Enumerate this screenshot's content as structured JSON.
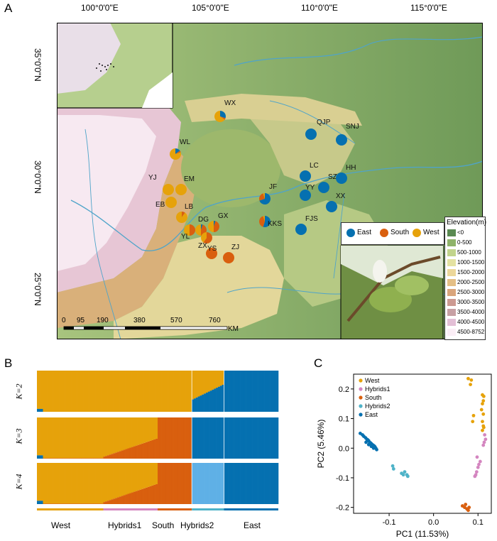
{
  "panels": {
    "a": "A",
    "b": "B",
    "c": "C"
  },
  "map": {
    "lon_labels": [
      "100°0'0\"E",
      "105°0'0\"E",
      "110°0'0\"E",
      "115°0'0\"E"
    ],
    "lat_labels": [
      "35°0'0\"N",
      "30°0'0\"N",
      "25°0'0\"N"
    ],
    "scale_labels": [
      "0",
      "95",
      "190",
      "380",
      "570",
      "760",
      "KM"
    ],
    "pop_legend": {
      "east": "East",
      "south": "South",
      "west": "West"
    },
    "elev_title": "Elevation(m)",
    "elev_classes": [
      {
        "label": "<0",
        "color": "#5a8a52"
      },
      {
        "label": "0-500",
        "color": "#8fb36a"
      },
      {
        "label": "500-1000",
        "color": "#c2d48c"
      },
      {
        "label": "1000-1500",
        "color": "#e4e2a2"
      },
      {
        "label": "1500-2000",
        "color": "#ecd79a"
      },
      {
        "label": "2000-2500",
        "color": "#e4bf86"
      },
      {
        "label": "2500-3000",
        "color": "#d9a57c"
      },
      {
        "label": "3000-3500",
        "color": "#cc9a92"
      },
      {
        "label": "3500-4000",
        "color": "#c7a0a4"
      },
      {
        "label": "4000-4500",
        "color": "#e3bfd6"
      },
      {
        "label": "4500-8752",
        "color": "#fbeef6"
      }
    ],
    "sites": [
      {
        "name": "WX",
        "east": 0.3,
        "south": 0.05,
        "west": 0.65
      },
      {
        "name": "QJP",
        "east": 1.0,
        "south": 0,
        "west": 0
      },
      {
        "name": "SNJ",
        "east": 1.0,
        "south": 0,
        "west": 0
      },
      {
        "name": "WL",
        "east": 0.15,
        "south": 0.05,
        "west": 0.8
      },
      {
        "name": "YJ",
        "east": 0,
        "south": 0,
        "west": 1.0
      },
      {
        "name": "EM",
        "east": 0,
        "south": 0,
        "west": 1.0
      },
      {
        "name": "EB",
        "east": 0,
        "south": 0,
        "west": 1.0
      },
      {
        "name": "LB",
        "east": 0,
        "south": 0.1,
        "west": 0.9
      },
      {
        "name": "YL",
        "east": 0,
        "south": 0.5,
        "west": 0.5
      },
      {
        "name": "DG",
        "east": 0.05,
        "south": 0.45,
        "west": 0.5
      },
      {
        "name": "GX",
        "east": 0.05,
        "south": 0.45,
        "west": 0.5
      },
      {
        "name": "ZX",
        "east": 0,
        "south": 0.6,
        "west": 0.4
      },
      {
        "name": "YS",
        "east": 0,
        "south": 1.0,
        "west": 0
      },
      {
        "name": "ZJ",
        "east": 0,
        "south": 1.0,
        "west": 0
      },
      {
        "name": "JF",
        "east": 0.7,
        "south": 0.25,
        "west": 0.05
      },
      {
        "name": "KKS",
        "east": 0.55,
        "south": 0.4,
        "west": 0.05
      },
      {
        "name": "LC",
        "east": 1.0,
        "south": 0,
        "west": 0
      },
      {
        "name": "YY",
        "east": 1.0,
        "south": 0,
        "west": 0
      },
      {
        "name": "SZ",
        "east": 1.0,
        "south": 0,
        "west": 0
      },
      {
        "name": "HH",
        "east": 1.0,
        "south": 0,
        "west": 0
      },
      {
        "name": "XX",
        "east": 1.0,
        "south": 0,
        "west": 0
      },
      {
        "name": "FJS",
        "east": 1.0,
        "south": 0,
        "west": 0
      }
    ]
  },
  "structure": {
    "k_labels": [
      "K=2",
      "K=3",
      "K=4"
    ],
    "group_labels": [
      "West",
      "Hybrids1",
      "South",
      "Hybrids2",
      "East"
    ]
  },
  "colors": {
    "west": "#e6a20a",
    "south": "#d95f0e",
    "east": "#0570b0",
    "hybrids1": "#d486c0",
    "hybrids2": "#4fb3c8",
    "k4_light": "#5fb0e6"
  },
  "chart_data": {
    "type": "scatter",
    "xlabel": "PC1 (11.53%)",
    "ylabel": "PC2 (5.46%)",
    "xlim": [
      -0.18,
      0.13
    ],
    "ylim": [
      -0.22,
      0.25
    ],
    "xticks": [
      -0.1,
      0.0,
      0.1
    ],
    "yticks": [
      -0.2,
      -0.1,
      0.0,
      0.1,
      0.2
    ],
    "xtick_labels": [
      "-0.1",
      "0.0",
      "0.1"
    ],
    "ytick_labels": [
      "-0.2",
      "-0.1",
      "0.0",
      "0.1",
      "0.2"
    ],
    "legend_position": "top-left",
    "series": [
      {
        "name": "West",
        "points": [
          [
            0.078,
            0.235
          ],
          [
            0.085,
            0.23
          ],
          [
            0.083,
            0.215
          ],
          [
            0.11,
            0.18
          ],
          [
            0.113,
            0.175
          ],
          [
            0.112,
            0.16
          ],
          [
            0.11,
            0.15
          ],
          [
            0.108,
            0.13
          ],
          [
            0.112,
            0.115
          ],
          [
            0.11,
            0.09
          ],
          [
            0.112,
            0.075
          ],
          [
            0.113,
            0.07
          ],
          [
            0.11,
            0.06
          ],
          [
            0.09,
            0.11
          ],
          [
            0.088,
            0.09
          ]
        ]
      },
      {
        "name": "Hybrids1",
        "points": [
          [
            0.115,
            0.045
          ],
          [
            0.117,
            0.03
          ],
          [
            0.114,
            0.02
          ],
          [
            0.112,
            0.01
          ],
          [
            0.098,
            -0.03
          ],
          [
            0.105,
            -0.045
          ],
          [
            0.102,
            -0.055
          ],
          [
            0.1,
            -0.065
          ],
          [
            0.097,
            -0.08
          ],
          [
            0.095,
            -0.09
          ],
          [
            0.093,
            -0.095
          ]
        ]
      },
      {
        "name": "South",
        "points": [
          [
            0.065,
            -0.195
          ],
          [
            0.07,
            -0.2
          ],
          [
            0.075,
            -0.205
          ],
          [
            0.072,
            -0.19
          ],
          [
            0.08,
            -0.2
          ],
          [
            0.078,
            -0.21
          ]
        ]
      },
      {
        "name": "Hybrids2",
        "points": [
          [
            -0.092,
            -0.06
          ],
          [
            -0.09,
            -0.07
          ],
          [
            -0.072,
            -0.085
          ],
          [
            -0.068,
            -0.09
          ],
          [
            -0.065,
            -0.08
          ],
          [
            -0.06,
            -0.09
          ],
          [
            -0.058,
            -0.095
          ]
        ]
      },
      {
        "name": "East",
        "points": [
          [
            -0.165,
            0.05
          ],
          [
            -0.16,
            0.045
          ],
          [
            -0.157,
            0.04
          ],
          [
            -0.153,
            0.035
          ],
          [
            -0.15,
            0.03
          ],
          [
            -0.148,
            0.028
          ],
          [
            -0.146,
            0.025
          ],
          [
            -0.144,
            0.02
          ],
          [
            -0.142,
            0.018
          ],
          [
            -0.14,
            0.015
          ],
          [
            -0.138,
            0.012
          ],
          [
            -0.136,
            0.01
          ],
          [
            -0.134,
            0.008
          ],
          [
            -0.132,
            0.005
          ],
          [
            -0.13,
            0.0
          ],
          [
            -0.128,
            -0.005
          ],
          [
            -0.152,
            0.02
          ],
          [
            -0.146,
            0.012
          ],
          [
            -0.14,
            0.006
          ],
          [
            -0.135,
            0.0
          ]
        ]
      }
    ]
  }
}
